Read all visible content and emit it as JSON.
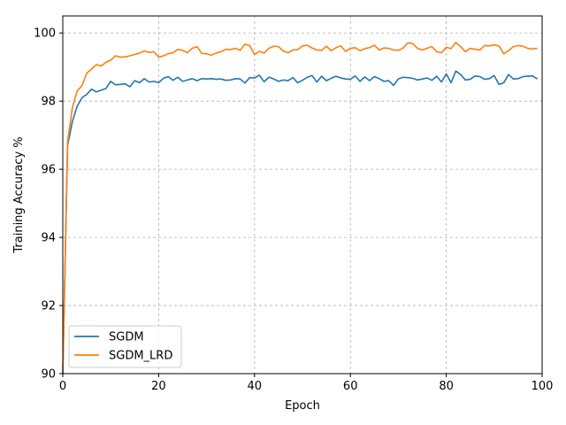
{
  "chart_data": {
    "type": "line",
    "title": "",
    "xlabel": "Epoch",
    "ylabel": "Training Accuracy %",
    "xlim": [
      0,
      100
    ],
    "ylim": [
      90,
      100.5
    ],
    "xticks": [
      "0",
      "20",
      "40",
      "60",
      "80",
      "100"
    ],
    "yticks": [
      "90",
      "92",
      "94",
      "96",
      "98",
      "100"
    ],
    "grid": true,
    "legend_position": "lower-left",
    "x": [
      0,
      1,
      2,
      3,
      4,
      5,
      6,
      7,
      8,
      9,
      10,
      11,
      12,
      13,
      14,
      15,
      16,
      17,
      18,
      19,
      20,
      21,
      22,
      23,
      24,
      25,
      26,
      27,
      28,
      29,
      30,
      31,
      32,
      33,
      34,
      35,
      36,
      37,
      38,
      39,
      40,
      41,
      42,
      43,
      44,
      45,
      46,
      47,
      48,
      49,
      50,
      51,
      52,
      53,
      54,
      55,
      56,
      57,
      58,
      59,
      60,
      61,
      62,
      63,
      64,
      65,
      66,
      67,
      68,
      69,
      70,
      71,
      72,
      73,
      74,
      75,
      76,
      77,
      78,
      79,
      80,
      81,
      82,
      83,
      84,
      85,
      86,
      87,
      88,
      89,
      90,
      91,
      92,
      93,
      94,
      95,
      96,
      97,
      98,
      99
    ],
    "series": [
      {
        "name": "SGDM",
        "color": "#1f77b4",
        "values": [
          90.0,
          96.7,
          97.4,
          97.85,
          98.1,
          98.2,
          98.35,
          98.27,
          98.32,
          98.37,
          98.58,
          98.48,
          98.49,
          98.51,
          98.42,
          98.6,
          98.54,
          98.66,
          98.56,
          98.58,
          98.54,
          98.67,
          98.72,
          98.61,
          98.7,
          98.58,
          98.62,
          98.66,
          98.6,
          98.66,
          98.65,
          98.66,
          98.64,
          98.65,
          98.61,
          98.62,
          98.66,
          98.65,
          98.53,
          98.69,
          98.68,
          98.76,
          98.57,
          98.7,
          98.65,
          98.58,
          98.62,
          98.6,
          98.69,
          98.54,
          98.61,
          98.7,
          98.75,
          98.56,
          98.73,
          98.6,
          98.67,
          98.73,
          98.68,
          98.65,
          98.64,
          98.74,
          98.58,
          98.71,
          98.6,
          98.72,
          98.66,
          98.58,
          98.6,
          98.46,
          98.65,
          98.7,
          98.69,
          98.67,
          98.62,
          98.65,
          98.68,
          98.61,
          98.73,
          98.56,
          98.8,
          98.54,
          98.88,
          98.78,
          98.62,
          98.64,
          98.74,
          98.72,
          98.64,
          98.66,
          98.75,
          98.49,
          98.54,
          98.78,
          98.65,
          98.66,
          98.72,
          98.73,
          98.74,
          98.65
        ]
      },
      {
        "name": "SGDM_LRD",
        "color": "#ff7f0e",
        "values": [
          90.0,
          96.8,
          97.8,
          98.3,
          98.45,
          98.82,
          98.94,
          99.07,
          99.03,
          99.14,
          99.2,
          99.33,
          99.29,
          99.3,
          99.33,
          99.37,
          99.41,
          99.47,
          99.43,
          99.45,
          99.29,
          99.33,
          99.39,
          99.42,
          99.52,
          99.49,
          99.42,
          99.55,
          99.6,
          99.4,
          99.39,
          99.35,
          99.41,
          99.45,
          99.52,
          99.51,
          99.55,
          99.49,
          99.67,
          99.63,
          99.37,
          99.46,
          99.41,
          99.55,
          99.61,
          99.6,
          99.47,
          99.42,
          99.5,
          99.51,
          99.62,
          99.64,
          99.56,
          99.5,
          99.49,
          99.61,
          99.48,
          99.57,
          99.62,
          99.46,
          99.55,
          99.57,
          99.48,
          99.54,
          99.57,
          99.64,
          99.5,
          99.56,
          99.55,
          99.5,
          99.49,
          99.56,
          99.71,
          99.69,
          99.55,
          99.5,
          99.55,
          99.6,
          99.45,
          99.42,
          99.58,
          99.54,
          99.72,
          99.6,
          99.45,
          99.55,
          99.52,
          99.5,
          99.63,
          99.62,
          99.65,
          99.62,
          99.39,
          99.48,
          99.6,
          99.63,
          99.61,
          99.55,
          99.53,
          99.55
        ]
      }
    ]
  }
}
